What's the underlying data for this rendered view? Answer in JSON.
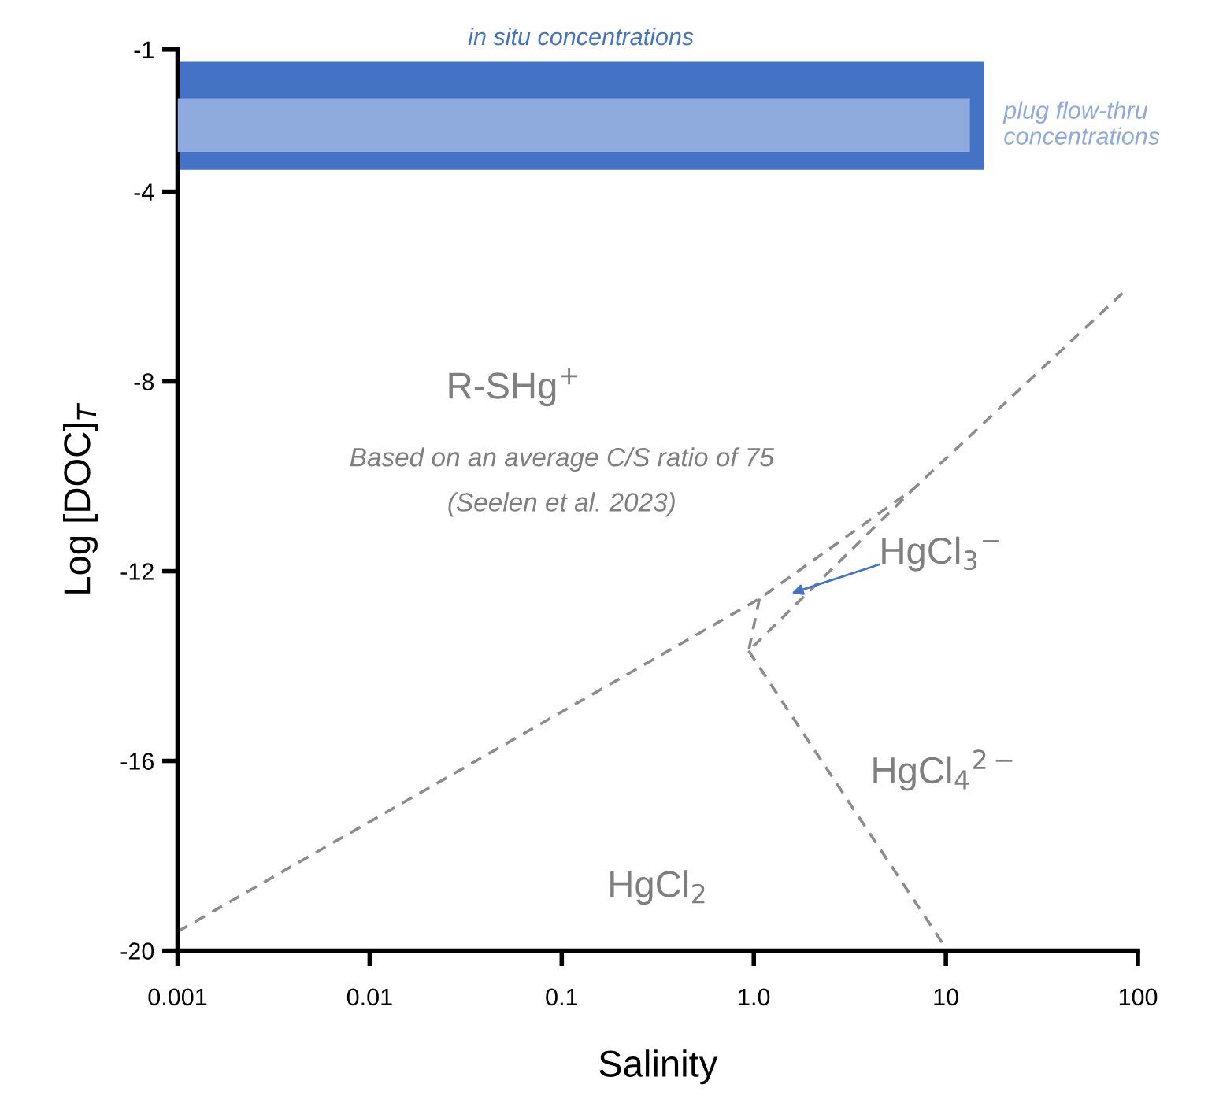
{
  "chart_data": {
    "type": "line",
    "xlabel": "Salinity",
    "ylabel": "Log [DOC]$_{T}$",
    "log": "x",
    "xlim": [
      0.001,
      100
    ],
    "xticks": [
      0.001,
      0.01,
      0.1,
      {
        "value": 1,
        "label": "1.0"
      },
      10,
      100
    ],
    "ylim": [
      -20,
      -1
    ],
    "yticks": [
      -1,
      -4,
      -8,
      -12,
      -16,
      -20
    ],
    "grid": false,
    "legend": false,
    "line_style": "dashed",
    "marker": "none",
    "bands": [
      {
        "axis": "y",
        "from": -3.54,
        "to": -1.26,
        "label": "in situ concentrations",
        "color": "#4472c4"
      },
      {
        "axis": "y",
        "from": -3.16,
        "to": -2.04,
        "label": "plug flow-thru concentrations",
        "color": "#8faadc"
      }
    ],
    "series": [
      {
        "color": "#8c8c8c",
        "x": [
          0.001,
          1.07,
          6.8,
          87
        ],
        "values": [
          -19.6,
          -12.58,
          -10.26,
          -6.06
        ]
      },
      {
        "color": "#8c8c8c",
        "x": [
          1.07,
          0.94,
          6.8
        ],
        "values": [
          -12.58,
          -13.68,
          -10.26
        ]
      },
      {
        "color": "#8c8c8c",
        "x": [
          0.94,
          10.2
        ],
        "values": [
          -13.68,
          -20
        ]
      }
    ],
    "annotations": [
      "R-SHg$^{+}$",
      "Based on an average C/S ratio of 75",
      "(Seelen et al. 2023)",
      "HgCl$_{3}$$^{−}$",
      "HgCl$_{4}$$^{2−}$",
      "HgCl$_{2}$"
    ]
  }
}
